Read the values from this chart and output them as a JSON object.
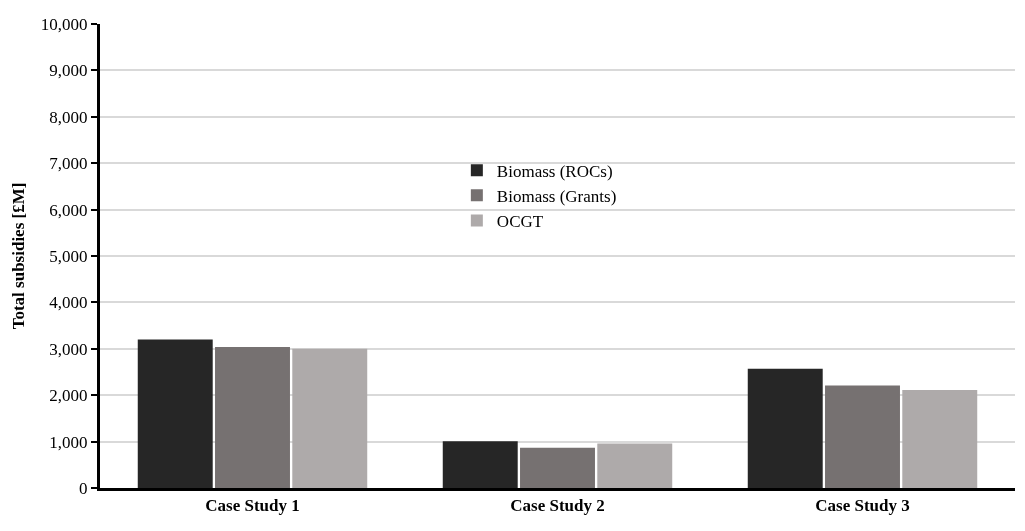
{
  "chart_data": {
    "type": "bar",
    "ylabel": "Total subsidies [£M]",
    "categories": [
      "Case Study 1",
      "Case Study 2",
      "Case Study 3"
    ],
    "series": [
      {
        "name": "Biomass (ROCs)",
        "color": "#262626",
        "values": [
          3200,
          1010,
          2570
        ]
      },
      {
        "name": "Biomass (Grants)",
        "color": "#767171",
        "values": [
          3040,
          870,
          2210
        ]
      },
      {
        "name": "OCGT",
        "color": "#aeaaaa",
        "values": [
          3000,
          960,
          2110
        ]
      }
    ],
    "ylim": [
      0,
      10000
    ],
    "yticks": [
      {
        "value": 0,
        "label": "0"
      },
      {
        "value": 1000,
        "label": "1,000"
      },
      {
        "value": 2000,
        "label": "2,000"
      },
      {
        "value": 3000,
        "label": "3,000"
      },
      {
        "value": 4000,
        "label": "4,000"
      },
      {
        "value": 5000,
        "label": "5,000"
      },
      {
        "value": 6000,
        "label": "6,000"
      },
      {
        "value": 7000,
        "label": "7,000"
      },
      {
        "value": 8000,
        "label": "8,000"
      },
      {
        "value": 9000,
        "label": "9,000"
      },
      {
        "value": 10000,
        "label": "10,000"
      }
    ],
    "grid": "y",
    "legend": "center"
  }
}
